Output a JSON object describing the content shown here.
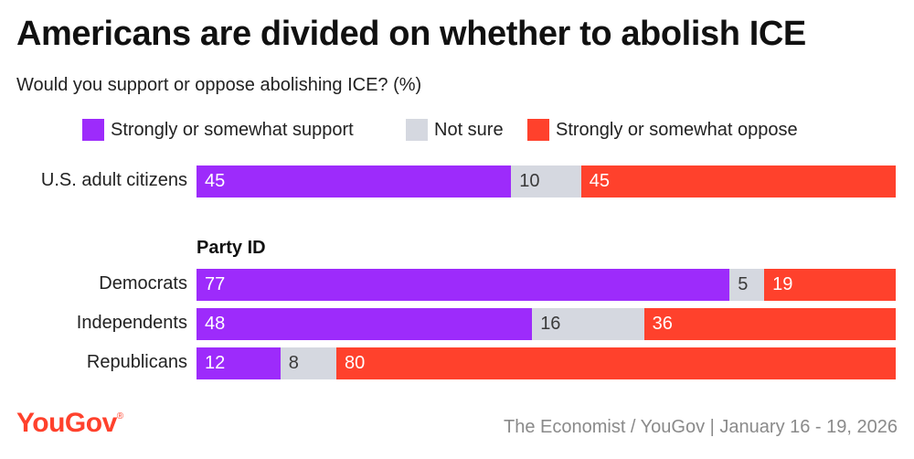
{
  "header": {
    "title": "Americans are divided on whether to abolish ICE",
    "subtitle": "Would you support or oppose abolishing ICE? (%)"
  },
  "legend": [
    {
      "label": "Strongly or somewhat support",
      "color": "#9d2bfb"
    },
    {
      "label": "Not sure",
      "color": "#d5d8e0"
    },
    {
      "label": "Strongly or somewhat oppose",
      "color": "#ff412c"
    }
  ],
  "chart_data": {
    "type": "bar",
    "orientation": "horizontal",
    "stacked": true,
    "title": "Americans are divided on whether to abolish ICE",
    "subtitle": "Would you support or oppose abolishing ICE? (%)",
    "group_heading": "Party ID",
    "categories": [
      "U.S. adult citizens",
      "Democrats",
      "Independents",
      "Republicans"
    ],
    "series": [
      {
        "name": "Strongly or somewhat support",
        "color": "#9d2bfb",
        "values": [
          45,
          77,
          48,
          12
        ]
      },
      {
        "name": "Not sure",
        "color": "#d5d8e0",
        "values": [
          10,
          5,
          16,
          8
        ]
      },
      {
        "name": "Strongly or somewhat oppose",
        "color": "#ff412c",
        "values": [
          45,
          19,
          36,
          80
        ]
      }
    ],
    "legend_position": "top",
    "grid": false
  },
  "footer": {
    "logo_text": "YouGov",
    "source": "The Economist / YouGov | January 16 - 19, 2026"
  }
}
